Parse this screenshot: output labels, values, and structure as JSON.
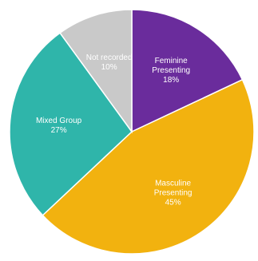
{
  "chart_data": {
    "type": "pie",
    "slices": [
      {
        "label": "Feminine\nPresenting",
        "value": 18,
        "display": "18%",
        "color": "#6a2c9c",
        "label_color": "#ffffff"
      },
      {
        "label": "Masculine\nPresenting",
        "value": 45,
        "display": "45%",
        "color": "#f2b20f",
        "label_color": "#1a1a1a"
      },
      {
        "label": "Mixed Group",
        "value": 27,
        "display": "27%",
        "color": "#2fb5aa",
        "label_color": "#1a1a1a"
      },
      {
        "label": "Not recorded",
        "value": 10,
        "display": "10%",
        "color": "#c9c9c9",
        "label_color": "#1a1a1a"
      }
    ],
    "start_angle_deg": 0,
    "direction": "clockwise",
    "legend": "none"
  }
}
